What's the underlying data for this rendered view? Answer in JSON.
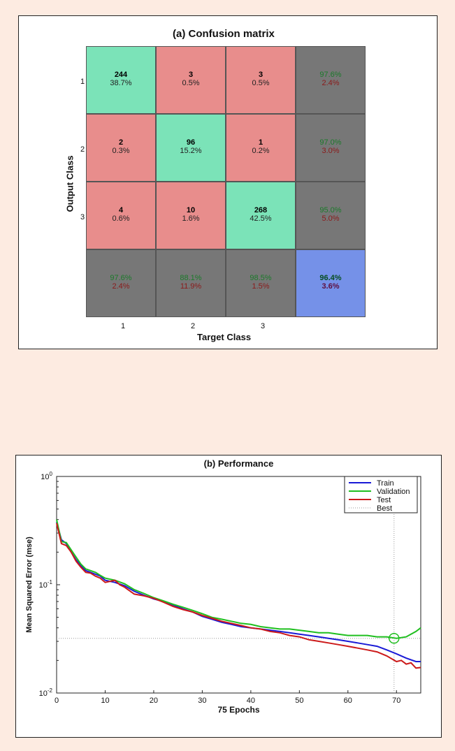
{
  "confusion": {
    "title": "(a) Confusion matrix",
    "xlabel": "Target Class",
    "ylabel": "Output Class",
    "x_ticks": [
      "1",
      "2",
      "3"
    ],
    "y_ticks": [
      "1",
      "2",
      "3"
    ],
    "colors": {
      "correct": "#7be3b8",
      "wrong": "#e88d8c",
      "summary": "#777777",
      "total": "#7591e8"
    },
    "rows": [
      [
        {
          "count": "244",
          "pct": "38.7%"
        },
        {
          "count": "3",
          "pct": "0.5%"
        },
        {
          "count": "3",
          "pct": "0.5%"
        },
        {
          "good": "97.6%",
          "bad": "2.4%"
        }
      ],
      [
        {
          "count": "2",
          "pct": "0.3%"
        },
        {
          "count": "96",
          "pct": "15.2%"
        },
        {
          "count": "1",
          "pct": "0.2%"
        },
        {
          "good": "97.0%",
          "bad": "3.0%"
        }
      ],
      [
        {
          "count": "4",
          "pct": "0.6%"
        },
        {
          "count": "10",
          "pct": "1.6%"
        },
        {
          "count": "268",
          "pct": "42.5%"
        },
        {
          "good": "95.0%",
          "bad": "5.0%"
        }
      ],
      [
        {
          "good": "97.6%",
          "bad": "2.4%"
        },
        {
          "good": "88.1%",
          "bad": "11.9%"
        },
        {
          "good": "98.5%",
          "bad": "1.5%"
        },
        {
          "good": "96.4%",
          "bad": "3.6%"
        }
      ]
    ]
  },
  "chart_data": {
    "type": "line",
    "title": "(b) Performance",
    "xlabel": "75 Epochs",
    "ylabel": "Mean Squared Error  (mse)",
    "xlim": [
      0,
      75
    ],
    "ylim": [
      0.01,
      1
    ],
    "yscale": "log",
    "x_ticks": [
      "0",
      "10",
      "20",
      "30",
      "40",
      "50",
      "60",
      "70"
    ],
    "y_ticks": [
      {
        "value": 1,
        "base": "10",
        "exp": "0"
      },
      {
        "value": 0.1,
        "base": "10",
        "exp": "-1"
      },
      {
        "value": 0.01,
        "base": "10",
        "exp": "-2"
      }
    ],
    "legend_position": "top-right",
    "best": {
      "epoch": 69.5,
      "value": 0.032,
      "label": "Best"
    },
    "series": [
      {
        "name": "Train",
        "color": "#1a1ad6",
        "x": [
          0,
          1,
          2,
          3,
          4,
          5,
          6,
          7,
          8,
          9,
          10,
          12,
          14,
          16,
          18,
          20,
          22,
          24,
          26,
          28,
          30,
          32,
          34,
          36,
          38,
          40,
          42,
          44,
          46,
          48,
          50,
          52,
          54,
          56,
          58,
          60,
          62,
          64,
          66,
          68,
          70,
          72,
          74,
          75
        ],
        "y": [
          0.38,
          0.26,
          0.24,
          0.2,
          0.17,
          0.15,
          0.135,
          0.13,
          0.125,
          0.12,
          0.11,
          0.105,
          0.098,
          0.087,
          0.08,
          0.074,
          0.07,
          0.065,
          0.06,
          0.056,
          0.051,
          0.048,
          0.045,
          0.043,
          0.041,
          0.04,
          0.039,
          0.038,
          0.037,
          0.036,
          0.035,
          0.034,
          0.033,
          0.032,
          0.031,
          0.03,
          0.029,
          0.028,
          0.027,
          0.025,
          0.023,
          0.021,
          0.0195,
          0.0195
        ]
      },
      {
        "name": "Validation",
        "color": "#1fbf1f",
        "x": [
          0,
          1,
          2,
          3,
          4,
          5,
          6,
          7,
          8,
          9,
          10,
          12,
          14,
          16,
          18,
          20,
          22,
          24,
          26,
          28,
          30,
          32,
          34,
          36,
          38,
          40,
          42,
          44,
          46,
          48,
          50,
          52,
          54,
          56,
          58,
          60,
          62,
          64,
          66,
          68,
          70,
          72,
          73,
          74,
          75
        ],
        "y": [
          0.4,
          0.25,
          0.245,
          0.21,
          0.18,
          0.155,
          0.14,
          0.135,
          0.13,
          0.122,
          0.115,
          0.11,
          0.102,
          0.09,
          0.083,
          0.076,
          0.071,
          0.066,
          0.062,
          0.058,
          0.054,
          0.05,
          0.048,
          0.046,
          0.044,
          0.043,
          0.041,
          0.04,
          0.039,
          0.039,
          0.038,
          0.037,
          0.036,
          0.036,
          0.035,
          0.034,
          0.034,
          0.034,
          0.033,
          0.033,
          0.032,
          0.033,
          0.035,
          0.037,
          0.04
        ]
      },
      {
        "name": "Test",
        "color": "#cc1a1a",
        "x": [
          0,
          1,
          2,
          3,
          4,
          5,
          6,
          7,
          8,
          9,
          10,
          12,
          13,
          14,
          16,
          18,
          20,
          22,
          24,
          26,
          28,
          30,
          32,
          34,
          36,
          38,
          40,
          42,
          44,
          46,
          48,
          50,
          52,
          54,
          56,
          58,
          60,
          62,
          64,
          66,
          68,
          70,
          71,
          72,
          73,
          74,
          75
        ],
        "y": [
          0.37,
          0.24,
          0.23,
          0.2,
          0.165,
          0.145,
          0.13,
          0.128,
          0.12,
          0.115,
          0.105,
          0.11,
          0.1,
          0.095,
          0.082,
          0.079,
          0.075,
          0.069,
          0.063,
          0.059,
          0.056,
          0.052,
          0.049,
          0.046,
          0.044,
          0.042,
          0.04,
          0.039,
          0.037,
          0.036,
          0.034,
          0.033,
          0.031,
          0.03,
          0.029,
          0.028,
          0.027,
          0.026,
          0.025,
          0.024,
          0.022,
          0.0195,
          0.02,
          0.0185,
          0.019,
          0.017,
          0.0172
        ]
      }
    ]
  }
}
